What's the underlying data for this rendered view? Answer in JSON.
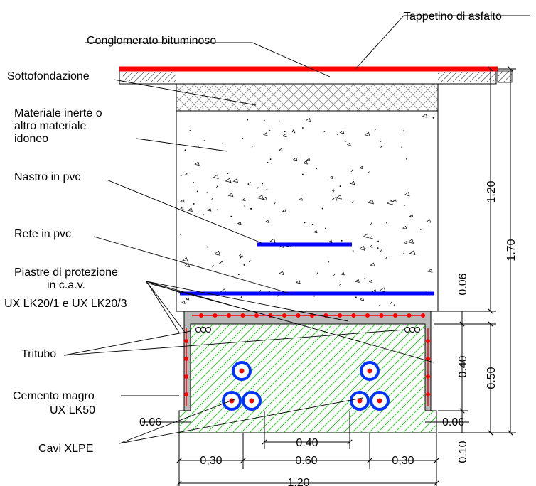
{
  "labels": {
    "tappetino": "Tappetino di asfalto",
    "conglomerato": "Conglomerato bituminoso",
    "sottofondazione": "Sottofondazione",
    "materiale_1": "Materiale inerte o",
    "materiale_2": "altro materiale",
    "materiale_3": "idoneo",
    "nastro": "Nastro in pvc",
    "rete": "Rete in pvc",
    "piastre_1": "Piastre di protezione",
    "piastre_2": "in c.a.v.",
    "piastre_3": "UX LK20/1  e UX LK20/3",
    "tritubo": "Tritubo",
    "cemento_1": "Cemento magro",
    "cemento_2": "UX LK50",
    "cavi": "Cavi XLPE"
  },
  "dimensions": {
    "h_1_20": "1.20",
    "h_1_70": "1.70",
    "h_0_06_top": "0.06",
    "h_0_40": "0.40",
    "h_0_50": "0.50",
    "h_0_10": "0.10",
    "left_0_06": "0.06",
    "right_0_06": "0.06",
    "w_0_40": "0.40",
    "w_0_30_left": "0,30",
    "w_0_60": "0.60",
    "w_0_30_right": "0,30",
    "w_1_20": "1.20"
  },
  "colors": {
    "asphalt": "#ff0000",
    "pvc": "#0000ff",
    "concrete_hatch": "#33cc33",
    "plate": "#b0b0b0",
    "cable_ring": "#0033ff",
    "cable_core": "#ff0000"
  }
}
